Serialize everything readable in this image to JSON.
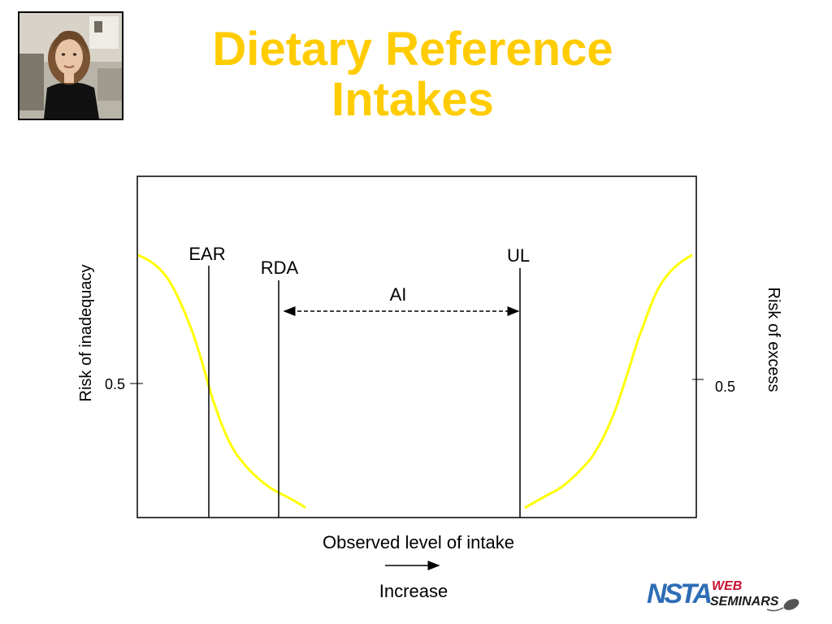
{
  "slide": {
    "title_line1": "Dietary Reference",
    "title_line2": "Intakes"
  },
  "diagram": {
    "labels": {
      "ear": "EAR",
      "rda": "RDA",
      "ul": "UL",
      "ai": "AI",
      "left_axis": "Risk of inadequacy",
      "right_axis": "Risk of excess",
      "left_tick": "0.5",
      "right_tick": "0.5",
      "x_axis": "Observed level of intake",
      "x_direction": "Increase"
    },
    "colors": {
      "curve": "#FFFF00",
      "line": "#000000",
      "title": "#FFCC00"
    }
  },
  "logo": {
    "primary": "NSTA",
    "line1": "WEB",
    "line2": "SEMINARS",
    "colors": {
      "nsta": "#2D6DB5",
      "seminars": "#C8102E"
    }
  }
}
